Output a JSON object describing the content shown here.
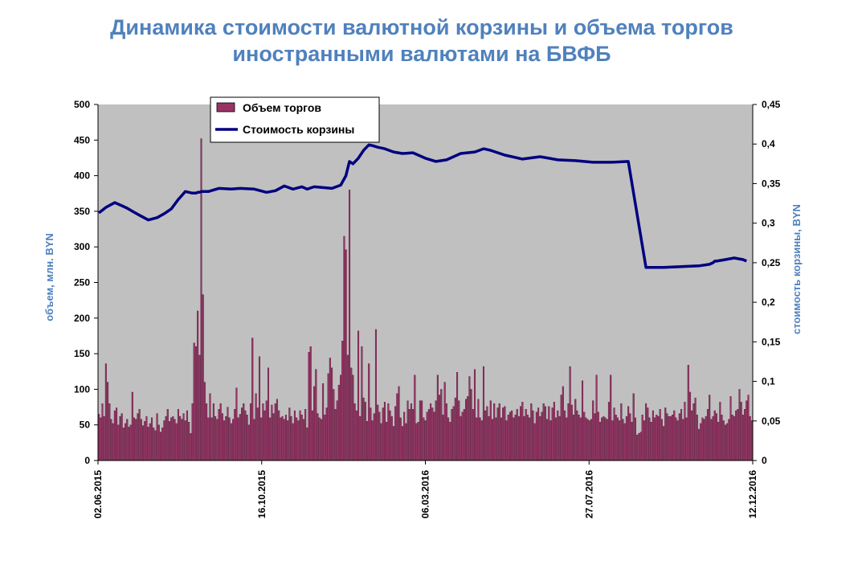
{
  "title": {
    "line1": "Динамика стоимости валютной корзины и объема торгов",
    "line2": "иностранными валютами на БВФБ"
  },
  "colors": {
    "plot_bg": "#c0c0c0",
    "bar": "#993366",
    "line": "#000080",
    "title": "#4f81bd"
  },
  "chart_data": {
    "type": "bar+line",
    "title": "Динамика стоимости валютной корзины и объема торгов иностранными валютами на БВФБ",
    "ylabel_left": "объем, млн. BYN",
    "ylabel_right": "стоимость корзины, BYN",
    "ylim_left": [
      0,
      500
    ],
    "ylim_right": [
      0,
      0.45
    ],
    "yticks_left": [
      "0",
      "50",
      "100",
      "150",
      "200",
      "250",
      "300",
      "350",
      "400",
      "450",
      "500"
    ],
    "yticks_right": [
      "0",
      "0,05",
      "0,1",
      "0,15",
      "0,2",
      "0,25",
      "0,3",
      "0,35",
      "0,4",
      "0,45"
    ],
    "xticks": [
      "02.06.2015",
      "16.10.2015",
      "06.03.2016",
      "27.07.2016",
      "12.12.2016"
    ],
    "legend_position": "top-left",
    "grid": false,
    "series": [
      {
        "name": "Объем торгов",
        "type": "bar",
        "values": [
          65,
          60,
          80,
          62,
          136,
          110,
          80,
          58,
          52,
          70,
          74,
          50,
          62,
          66,
          46,
          52,
          58,
          47,
          50,
          96,
          60,
          58,
          66,
          72,
          58,
          49,
          55,
          62,
          47,
          52,
          60,
          46,
          42,
          66,
          50,
          40,
          46,
          56,
          62,
          72,
          55,
          60,
          62,
          58,
          52,
          72,
          62,
          58,
          66,
          56,
          70,
          54,
          38,
          80,
          165,
          160,
          210,
          148,
          452,
          233,
          110,
          80,
          60,
          94,
          60,
          80,
          62,
          58,
          72,
          80,
          66,
          56,
          62,
          75,
          60,
          52,
          58,
          72,
          102,
          60,
          65,
          74,
          80,
          70,
          64,
          50,
          80,
          172,
          58,
          94,
          74,
          146,
          60,
          80,
          70,
          84,
          130,
          60,
          78,
          66,
          80,
          86,
          70,
          60,
          62,
          58,
          64,
          56,
          74,
          62,
          52,
          70,
          60,
          56,
          70,
          64,
          58,
          72,
          46,
          152,
          160,
          70,
          104,
          128,
          66,
          60,
          58,
          108,
          64,
          74,
          122,
          144,
          130,
          100,
          72,
          84,
          106,
          120,
          168,
          315,
          296,
          148,
          380,
          130,
          120,
          80,
          70,
          182,
          62,
          160,
          88,
          82,
          55,
          136,
          74,
          56,
          66,
          184,
          78,
          68,
          52,
          74,
          82,
          54,
          80,
          70,
          62,
          48,
          76,
          94,
          104,
          60,
          48,
          68,
          52,
          84,
          72,
          80,
          72,
          120,
          52,
          54,
          84,
          84,
          60,
          56,
          68,
          72,
          80,
          74,
          68,
          84,
          120,
          92,
          100,
          64,
          110,
          80,
          60,
          54,
          72,
          76,
          88,
          124,
          84,
          62,
          68,
          72,
          86,
          90,
          118,
          100,
          72,
          128,
          60,
          86,
          60,
          56,
          132,
          70,
          76,
          62,
          84,
          58,
          80,
          60,
          74,
          80,
          60,
          74,
          76,
          56,
          64,
          68,
          70,
          60,
          64,
          72,
          62,
          76,
          82,
          62,
          72,
          64,
          60,
          80,
          70,
          52,
          68,
          74,
          62,
          68,
          80,
          76,
          58,
          76,
          56,
          74,
          82,
          60,
          70,
          62,
          92,
          104,
          70,
          60,
          80,
          132,
          78,
          64,
          86,
          70,
          64,
          60,
          112,
          68,
          60,
          58,
          56,
          58,
          84,
          66,
          120,
          68,
          54,
          60,
          62,
          60,
          58,
          82,
          120,
          56,
          74,
          64,
          60,
          56,
          80,
          58,
          52,
          62,
          76,
          66,
          54,
          94,
          60,
          36,
          38,
          40,
          64,
          56,
          80,
          74,
          60,
          54,
          70,
          60,
          64,
          62,
          72,
          58,
          48,
          74,
          66,
          62,
          62,
          64,
          70,
          60,
          56,
          66,
          72,
          58,
          82,
          60,
          134,
          96,
          70,
          80,
          88,
          64,
          44,
          52,
          60,
          58,
          62,
          72,
          92,
          58,
          62,
          70,
          66,
          54,
          82,
          64,
          56,
          50,
          52,
          58,
          90,
          64,
          62,
          70,
          72,
          100,
          82,
          64,
          72,
          84,
          92,
          62,
          56
        ]
      },
      {
        "name": "Стоимость корзины",
        "type": "line",
        "x_index": [
          0,
          4,
          9,
          13,
          16,
          19,
          23,
          28,
          33,
          37,
          41,
          45,
          49,
          53,
          55,
          56,
          57,
          58,
          62,
          68,
          75,
          80,
          88,
          95,
          100,
          105,
          110,
          115,
          118,
          122,
          127,
          132,
          137,
          140,
          142,
          144,
          147,
          150,
          153,
          155,
          158,
          162,
          167,
          172,
          178,
          185,
          191,
          197,
          205,
          213,
          218,
          222,
          230,
          240,
          250,
          255,
          260,
          270,
          280,
          290,
          300,
          310,
          320,
          330,
          340,
          346,
          348,
          349,
          350,
          355,
          360,
          365,
          367
        ],
        "values": [
          0.313,
          0.32,
          0.326,
          0.322,
          0.319,
          0.315,
          0.31,
          0.304,
          0.307,
          0.312,
          0.318,
          0.33,
          0.34,
          0.338,
          0.338,
          0.339,
          0.339,
          0.34,
          0.34,
          0.344,
          0.343,
          0.344,
          0.343,
          0.339,
          0.341,
          0.347,
          0.343,
          0.346,
          0.343,
          0.346,
          0.345,
          0.344,
          0.348,
          0.36,
          0.378,
          0.375,
          0.382,
          0.392,
          0.399,
          0.398,
          0.396,
          0.394,
          0.39,
          0.388,
          0.389,
          0.382,
          0.378,
          0.38,
          0.388,
          0.39,
          0.394,
          0.392,
          0.386,
          0.381,
          0.384,
          0.382,
          0.38,
          0.379,
          0.377,
          0.377,
          0.378,
          0.244,
          0.244,
          0.245,
          0.246,
          0.248,
          0.25,
          0.252,
          0.252,
          0.254,
          0.256,
          0.254,
          0.252
        ]
      }
    ]
  }
}
